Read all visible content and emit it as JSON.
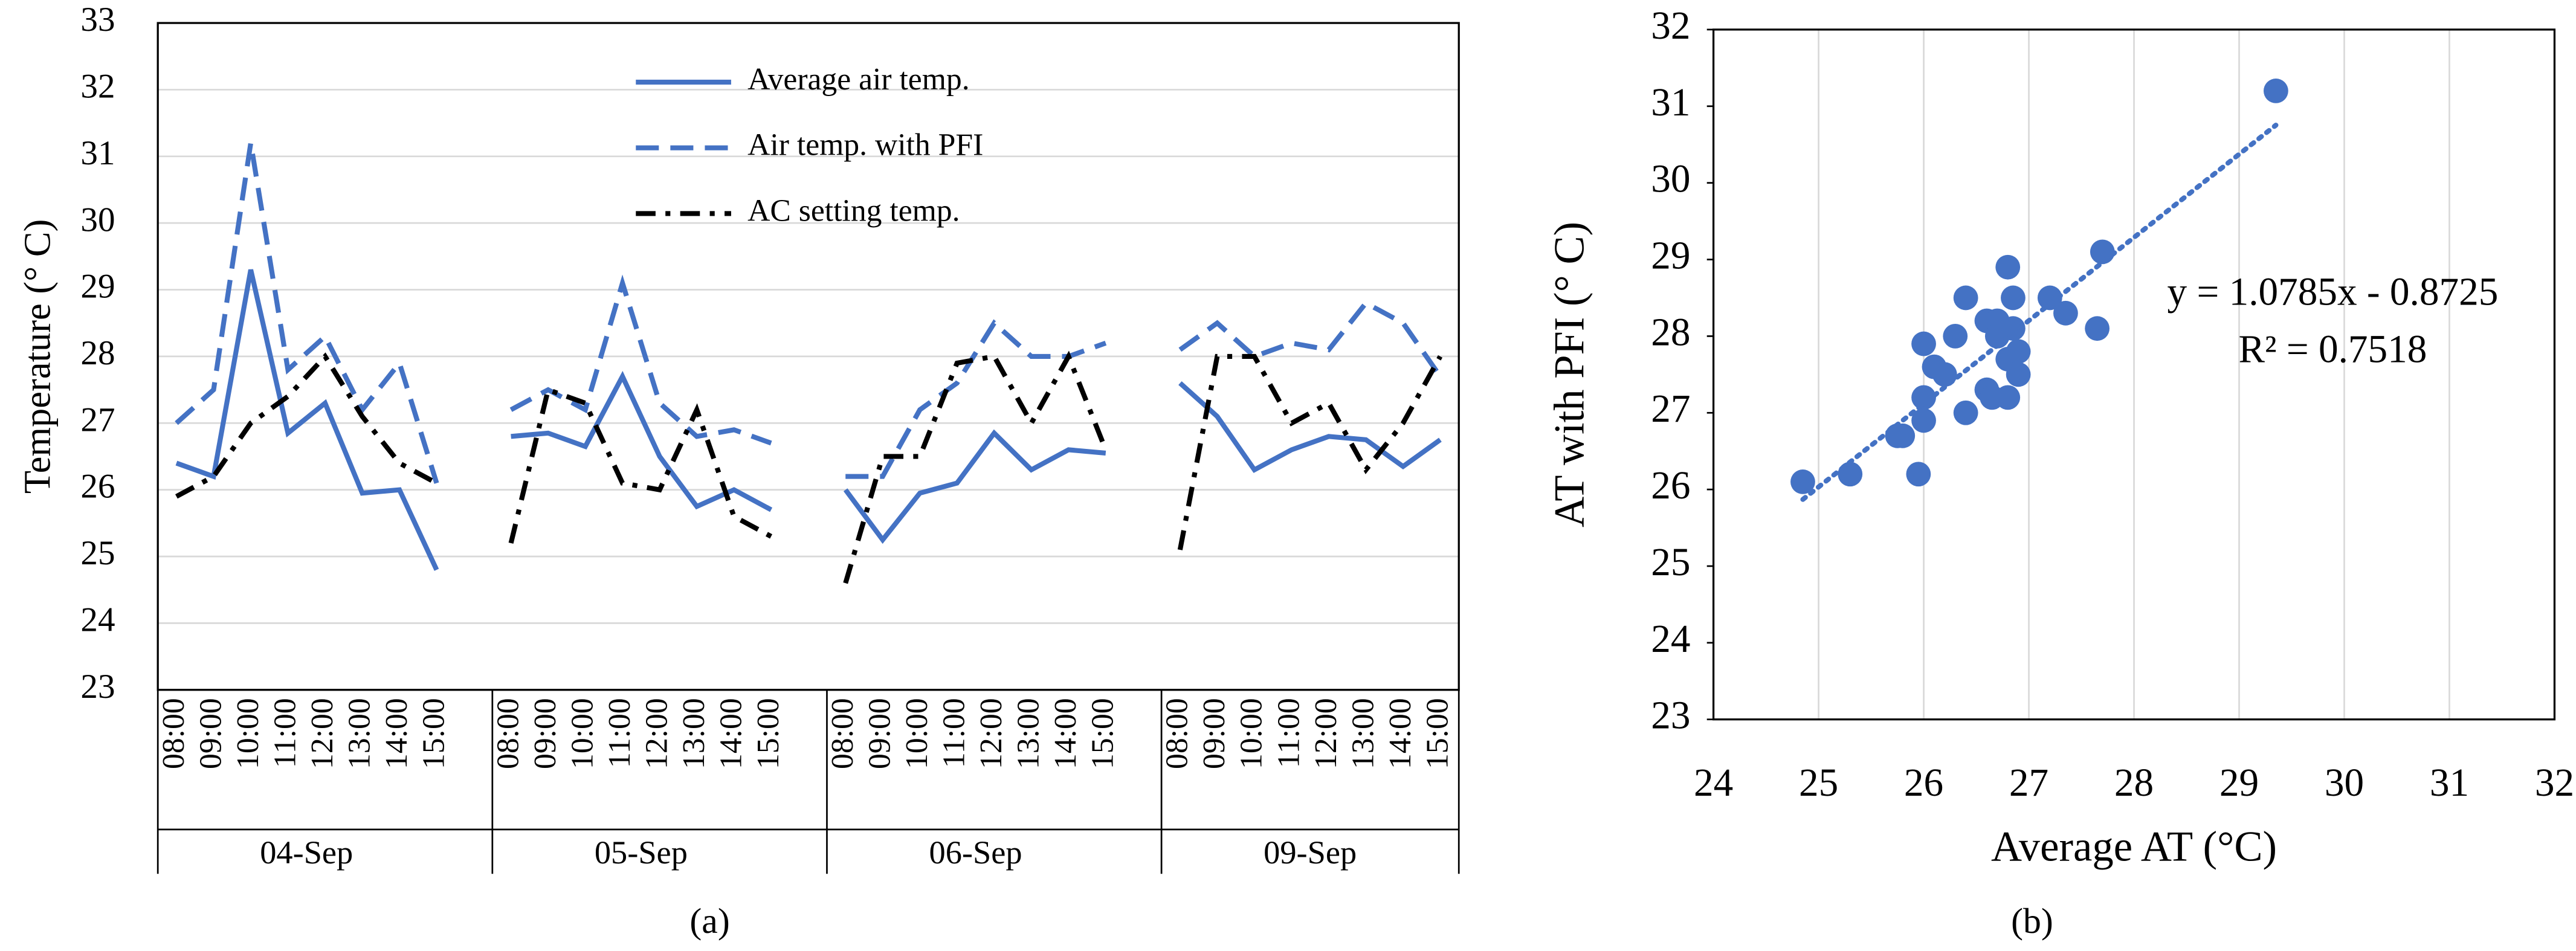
{
  "chart_data": [
    {
      "type": "line",
      "ylabel": "Temperature (°  C)",
      "caption": "(a)",
      "categories": [
        "08:00",
        "09:00",
        "10:00",
        "11:00",
        "12:00",
        "13:00",
        "14:00",
        "15:00",
        null,
        "08:00",
        "09:00",
        "10:00",
        "11:00",
        "12:00",
        "13:00",
        "14:00",
        "15:00",
        null,
        "08:00",
        "09:00",
        "10:00",
        "11:00",
        "12:00",
        "13:00",
        "14:00",
        "15:00",
        null,
        "08:00",
        "09:00",
        "10:00",
        "11:00",
        "12:00",
        "13:00",
        "14:00",
        "15:00"
      ],
      "groups": [
        "04-Sep",
        "05-Sep",
        "06-Sep",
        "09-Sep"
      ],
      "series": [
        {
          "name": "Average air temp.",
          "color": "#4472c4",
          "style": "solid",
          "values": [
            26.4,
            26.2,
            29.3,
            26.85,
            27.3,
            25.95,
            26.0,
            24.8,
            null,
            26.8,
            26.85,
            26.65,
            27.7,
            26.5,
            25.75,
            26.0,
            25.7,
            null,
            26.0,
            25.25,
            25.95,
            26.1,
            26.85,
            26.3,
            26.6,
            26.55,
            null,
            27.6,
            27.1,
            26.3,
            26.6,
            26.8,
            26.75,
            26.35,
            26.75
          ]
        },
        {
          "name": "Air temp. with PFI",
          "color": "#4472c4",
          "style": "dashed",
          "values": [
            27.0,
            27.5,
            31.2,
            27.8,
            28.3,
            27.2,
            27.9,
            26.1,
            null,
            27.2,
            27.5,
            27.2,
            29.1,
            27.3,
            26.8,
            26.9,
            26.7,
            null,
            26.2,
            26.2,
            27.2,
            27.6,
            28.5,
            28.0,
            28.0,
            28.2,
            null,
            28.1,
            28.5,
            28.0,
            28.2,
            28.1,
            28.8,
            28.5,
            27.7
          ]
        },
        {
          "name": "AC setting temp.",
          "color": "#000000",
          "style": "dashdot",
          "values": [
            25.9,
            26.2,
            27.0,
            27.4,
            28.0,
            27.1,
            26.4,
            26.1,
            null,
            25.2,
            27.5,
            27.3,
            26.1,
            26.0,
            27.2,
            25.6,
            25.3,
            null,
            24.6,
            26.5,
            26.5,
            27.9,
            28.0,
            27.0,
            28.0,
            26.6,
            null,
            25.1,
            28.0,
            28.0,
            27.0,
            27.3,
            26.3,
            27.0,
            28.0
          ]
        }
      ],
      "ylim": [
        23,
        33
      ],
      "yticks": [
        23,
        24,
        25,
        26,
        27,
        28,
        29,
        30,
        31,
        32,
        33
      ],
      "grid": true,
      "legend": "top"
    },
    {
      "type": "scatter",
      "xlabel": "Average AT (°C)",
      "ylabel": "AT with PFI (°  C)",
      "caption": "(b)",
      "color": "#4472c4",
      "x": [
        24.85,
        25.3,
        25.8,
        25.75,
        25.95,
        26.0,
        26.0,
        26.0,
        26.1,
        26.2,
        26.3,
        26.4,
        26.4,
        26.6,
        26.6,
        26.7,
        26.65,
        26.7,
        26.75,
        26.8,
        26.8,
        26.8,
        26.85,
        26.85,
        26.9,
        26.9,
        27.2,
        27.35,
        27.65,
        27.7,
        29.35
      ],
      "y": [
        26.1,
        26.2,
        26.7,
        26.7,
        26.2,
        27.2,
        26.9,
        27.9,
        27.6,
        27.5,
        28.0,
        28.5,
        27.0,
        27.3,
        28.2,
        28.2,
        27.2,
        28.0,
        28.1,
        28.9,
        27.7,
        27.2,
        28.1,
        28.5,
        27.8,
        27.5,
        28.5,
        28.3,
        28.1,
        29.1,
        31.2
      ],
      "trendline": "linear",
      "annotations": [
        "y = 1.0785x - 0.8725",
        "R² = 0.7518"
      ],
      "xlim": [
        24,
        32
      ],
      "xticks": [
        24,
        25,
        26,
        27,
        28,
        29,
        30,
        31,
        32
      ],
      "ylim": [
        23,
        32
      ],
      "yticks": [
        23,
        24,
        25,
        26,
        27,
        28,
        29,
        30,
        31,
        32
      ],
      "grid": true
    }
  ]
}
